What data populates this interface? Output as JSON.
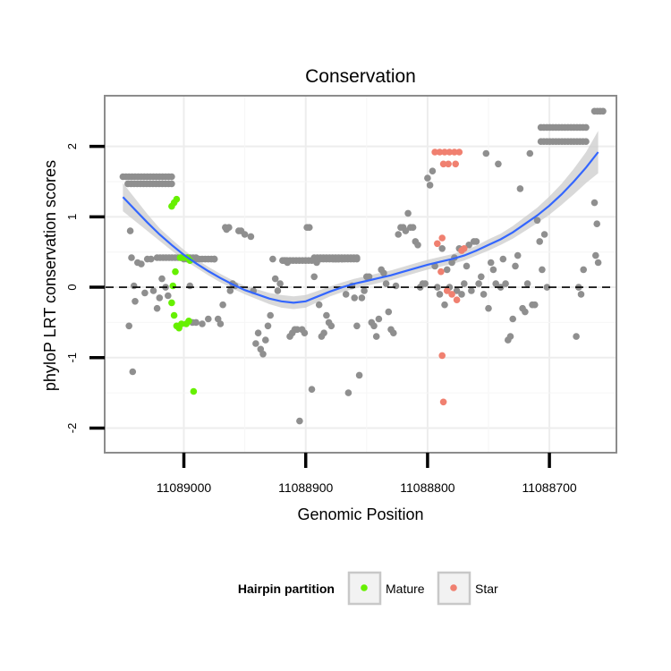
{
  "chart_data": {
    "type": "scatter",
    "title": "Conservation",
    "xlabel": "Genomic Position",
    "ylabel": "phyloP LRT conservation scores",
    "x_reversed": true,
    "xlim": [
      11089065,
      11088645
    ],
    "ylim": [
      -2.35,
      2.72
    ],
    "x_ticks": [
      11089000,
      11088900,
      11088800,
      11088700
    ],
    "x_tick_labels": [
      "11089000",
      "11088900",
      "11088800",
      "11088700"
    ],
    "y_ticks": [
      -2,
      -1,
      0,
      1,
      2
    ],
    "y_tick_labels": [
      "-2",
      "-1",
      "0",
      "1",
      "2"
    ],
    "grid": true,
    "reference_line": {
      "y": 0,
      "style": "dashed"
    },
    "colors": {
      "other": "#8f8f8f",
      "Mature": "#66f000",
      "Star": "#f08070",
      "smooth": "#3366ff",
      "band": "#cccccc"
    },
    "legend": {
      "title": "Hairpin partition",
      "placement": "bottom",
      "entries": [
        {
          "label": "Mature",
          "color": "#66f000"
        },
        {
          "label": "Star",
          "color": "#f08070"
        }
      ]
    },
    "series": [
      {
        "group": "other",
        "points": [
          [
            11089045,
            -0.55
          ],
          [
            11089044,
            0.8
          ],
          [
            11089043,
            0.42
          ],
          [
            11089042,
            -1.2
          ],
          [
            11089041,
            0.02
          ],
          [
            11089040,
            -0.2
          ],
          [
            11089038,
            0.35
          ],
          [
            11089035,
            0.33
          ],
          [
            11089032,
            -0.08
          ],
          [
            11089030,
            0.4
          ],
          [
            11089027,
            0.4
          ],
          [
            11089025,
            -0.05
          ],
          [
            11089022,
            -0.3
          ],
          [
            11089020,
            -0.15
          ],
          [
            11089018,
            0.12
          ],
          [
            11089015,
            0.0
          ],
          [
            11089013,
            -0.12
          ],
          [
            11088995,
            0.02
          ],
          [
            11088993,
            -0.5
          ],
          [
            11088990,
            -0.5
          ],
          [
            11088985,
            -0.52
          ],
          [
            11088980,
            -0.45
          ],
          [
            11088975,
            0.4
          ],
          [
            11088972,
            -0.45
          ],
          [
            11088970,
            -0.52
          ],
          [
            11088968,
            -0.25
          ],
          [
            11088966,
            0.85
          ],
          [
            11088965,
            0.82
          ],
          [
            11088963,
            0.85
          ],
          [
            11088962,
            -0.05
          ],
          [
            11088960,
            0.05
          ],
          [
            11088958,
            0.02
          ],
          [
            11088955,
            0.8
          ],
          [
            11088953,
            0.8
          ],
          [
            11088950,
            0.75
          ],
          [
            11088945,
            0.72
          ],
          [
            11088943,
            -0.05
          ],
          [
            11088941,
            -0.8
          ],
          [
            11088939,
            -0.65
          ],
          [
            11088937,
            -0.88
          ],
          [
            11088935,
            -0.95
          ],
          [
            11088933,
            -0.75
          ],
          [
            11088931,
            -0.55
          ],
          [
            11088929,
            -0.4
          ],
          [
            11088927,
            0.4
          ],
          [
            11088925,
            0.12
          ],
          [
            11088923,
            -0.05
          ],
          [
            11088921,
            0.05
          ],
          [
            11088919,
            0.38
          ],
          [
            11088917,
            0.38
          ],
          [
            11088915,
            0.35
          ],
          [
            11088913,
            -0.7
          ],
          [
            11088911,
            -0.65
          ],
          [
            11088909,
            -0.6
          ],
          [
            11088907,
            -0.6
          ],
          [
            11088905,
            -1.9
          ],
          [
            11088903,
            -0.6
          ],
          [
            11088901,
            -0.65
          ],
          [
            11088899,
            0.85
          ],
          [
            11088897,
            0.85
          ],
          [
            11088895,
            -1.45
          ],
          [
            11088893,
            0.15
          ],
          [
            11088891,
            0.35
          ],
          [
            11088889,
            -0.25
          ],
          [
            11088887,
            -0.7
          ],
          [
            11088885,
            -0.65
          ],
          [
            11088883,
            -0.4
          ],
          [
            11088881,
            -0.5
          ],
          [
            11088879,
            -0.55
          ],
          [
            11088877,
            0.4
          ],
          [
            11088875,
            0.4
          ],
          [
            11088873,
            0.4
          ],
          [
            11088870,
            0.4
          ],
          [
            11088867,
            -0.1
          ],
          [
            11088865,
            -1.5
          ],
          [
            11088862,
            0.02
          ],
          [
            11088860,
            -0.15
          ],
          [
            11088858,
            -0.55
          ],
          [
            11088856,
            -1.25
          ],
          [
            11088854,
            -0.15
          ],
          [
            11088852,
            -0.05
          ],
          [
            11088850,
            0.15
          ],
          [
            11088848,
            0.15
          ],
          [
            11088846,
            -0.5
          ],
          [
            11088844,
            -0.55
          ],
          [
            11088842,
            -0.7
          ],
          [
            11088840,
            -0.45
          ],
          [
            11088838,
            0.25
          ],
          [
            11088836,
            0.2
          ],
          [
            11088834,
            0.05
          ],
          [
            11088832,
            -0.35
          ],
          [
            11088830,
            -0.6
          ],
          [
            11088828,
            -0.65
          ],
          [
            11088826,
            0.02
          ],
          [
            11088824,
            0.75
          ],
          [
            11088822,
            0.85
          ],
          [
            11088820,
            0.85
          ],
          [
            11088818,
            0.8
          ],
          [
            11088816,
            1.05
          ],
          [
            11088814,
            0.85
          ],
          [
            11088812,
            0.85
          ],
          [
            11088810,
            0.65
          ],
          [
            11088808,
            0.6
          ],
          [
            11088806,
            0.0
          ],
          [
            11088804,
            0.05
          ],
          [
            11088802,
            0.05
          ],
          [
            11088800,
            1.55
          ],
          [
            11088798,
            1.45
          ],
          [
            11088796,
            1.65
          ],
          [
            11088794,
            0.3
          ],
          [
            11088792,
            0.0
          ],
          [
            11088790,
            -0.1
          ],
          [
            11088788,
            0.55
          ],
          [
            11088786,
            -0.25
          ],
          [
            11088784,
            0.25
          ],
          [
            11088782,
            0.0
          ],
          [
            11088780,
            0.35
          ],
          [
            11088778,
            0.42
          ],
          [
            11088776,
            -0.05
          ],
          [
            11088774,
            0.55
          ],
          [
            11088772,
            -0.1
          ],
          [
            11088770,
            0.05
          ],
          [
            11088768,
            0.3
          ],
          [
            11088766,
            0.6
          ],
          [
            11088764,
            -0.05
          ],
          [
            11088762,
            0.65
          ],
          [
            11088760,
            0.65
          ],
          [
            11088758,
            0.05
          ],
          [
            11088756,
            0.15
          ],
          [
            11088754,
            -0.1
          ],
          [
            11088752,
            1.9
          ],
          [
            11088750,
            -0.3
          ],
          [
            11088748,
            0.35
          ],
          [
            11088746,
            0.25
          ],
          [
            11088744,
            0.05
          ],
          [
            11088742,
            1.75
          ],
          [
            11088740,
            0.0
          ],
          [
            11088738,
            0.4
          ],
          [
            11088736,
            0.05
          ],
          [
            11088734,
            -0.75
          ],
          [
            11088732,
            -0.7
          ],
          [
            11088730,
            -0.45
          ],
          [
            11088728,
            0.3
          ],
          [
            11088726,
            0.45
          ],
          [
            11088724,
            1.4
          ],
          [
            11088722,
            -0.3
          ],
          [
            11088720,
            -0.35
          ],
          [
            11088718,
            0.05
          ],
          [
            11088716,
            1.9
          ],
          [
            11088714,
            -0.25
          ],
          [
            11088712,
            -0.25
          ],
          [
            11088710,
            0.95
          ],
          [
            11088708,
            0.65
          ],
          [
            11088706,
            0.25
          ],
          [
            11088704,
            0.75
          ],
          [
            11088702,
            0.0
          ],
          [
            11088678,
            -0.7
          ],
          [
            11088676,
            0.0
          ],
          [
            11088674,
            -0.1
          ],
          [
            11088672,
            0.25
          ],
          [
            11088663,
            1.2
          ],
          [
            11088662,
            0.45
          ],
          [
            11088661,
            0.9
          ],
          [
            11088660,
            0.35
          ]
        ]
      },
      {
        "group": "other",
        "runs": [
          [
            11089050,
            11089010,
            1.57
          ],
          [
            11089046,
            11089010,
            1.47
          ],
          [
            11089022,
            11088990,
            0.42
          ],
          [
            11089000,
            11088975,
            0.4
          ],
          [
            11088918,
            11088895,
            0.38
          ],
          [
            11088893,
            11088858,
            0.42
          ],
          [
            11088893,
            11088858,
            0.4
          ],
          [
            11088707,
            11088670,
            2.27
          ],
          [
            11088707,
            11088670,
            2.07
          ],
          [
            11088663,
            11088656,
            2.5
          ]
        ]
      },
      {
        "group": "Mature",
        "name": "Mature",
        "points": [
          [
            11089010,
            1.15
          ],
          [
            11089008,
            1.2
          ],
          [
            11089006,
            1.25
          ],
          [
            11089007,
            0.22
          ],
          [
            11089009,
            0.02
          ],
          [
            11089010,
            -0.22
          ],
          [
            11089008,
            -0.4
          ],
          [
            11089006,
            -0.55
          ],
          [
            11089004,
            -0.58
          ],
          [
            11089002,
            -0.52
          ],
          [
            11088998,
            -0.52
          ],
          [
            11088996,
            -0.48
          ],
          [
            11088992,
            -1.48
          ],
          [
            11089003,
            0.42
          ],
          [
            11089000,
            0.42
          ],
          [
            11088997,
            0.42
          ],
          [
            11088995,
            0.38
          ]
        ]
      },
      {
        "group": "Star",
        "name": "Star",
        "points": [
          [
            11088794,
            1.92
          ],
          [
            11088790,
            1.92
          ],
          [
            11088786,
            1.92
          ],
          [
            11088782,
            1.92
          ],
          [
            11088778,
            1.92
          ],
          [
            11088774,
            1.92
          ],
          [
            11088787,
            1.75
          ],
          [
            11088783,
            1.75
          ],
          [
            11088777,
            1.75
          ],
          [
            11088792,
            0.62
          ],
          [
            11088788,
            0.7
          ],
          [
            11088784,
            -0.05
          ],
          [
            11088780,
            -0.1
          ],
          [
            11088776,
            -0.18
          ],
          [
            11088772,
            0.52
          ],
          [
            11088770,
            0.55
          ],
          [
            11088789,
            0.22
          ],
          [
            11088788,
            -0.97
          ],
          [
            11088787,
            -1.63
          ]
        ]
      }
    ],
    "smooth_fit": {
      "x": [
        11089050,
        11089040,
        11089030,
        11089020,
        11089010,
        11089000,
        11088990,
        11088980,
        11088970,
        11088960,
        11088950,
        11088940,
        11088930,
        11088920,
        11088910,
        11088900,
        11088890,
        11088880,
        11088870,
        11088860,
        11088850,
        11088840,
        11088830,
        11088820,
        11088810,
        11088800,
        11088790,
        11088780,
        11088770,
        11088760,
        11088750,
        11088740,
        11088730,
        11088720,
        11088710,
        11088700,
        11088690,
        11088680,
        11088670,
        11088660
      ],
      "y": [
        1.28,
        1.1,
        0.92,
        0.75,
        0.6,
        0.46,
        0.34,
        0.23,
        0.13,
        0.04,
        -0.04,
        -0.1,
        -0.16,
        -0.2,
        -0.22,
        -0.2,
        -0.13,
        -0.06,
        0.0,
        0.05,
        0.09,
        0.13,
        0.17,
        0.22,
        0.27,
        0.32,
        0.36,
        0.4,
        0.45,
        0.52,
        0.6,
        0.68,
        0.78,
        0.9,
        1.02,
        1.16,
        1.32,
        1.5,
        1.7,
        1.92
      ],
      "lower": [
        1.08,
        0.94,
        0.8,
        0.66,
        0.52,
        0.39,
        0.28,
        0.17,
        0.07,
        -0.02,
        -0.1,
        -0.17,
        -0.24,
        -0.29,
        -0.31,
        -0.29,
        -0.21,
        -0.13,
        -0.07,
        -0.02,
        0.02,
        0.06,
        0.1,
        0.15,
        0.2,
        0.25,
        0.29,
        0.33,
        0.38,
        0.45,
        0.52,
        0.6,
        0.69,
        0.8,
        0.91,
        1.03,
        1.17,
        1.32,
        1.48,
        1.62
      ],
      "upper": [
        1.48,
        1.26,
        1.04,
        0.84,
        0.68,
        0.53,
        0.4,
        0.29,
        0.19,
        0.1,
        0.02,
        -0.03,
        -0.08,
        -0.11,
        -0.13,
        -0.11,
        -0.05,
        0.01,
        0.07,
        0.12,
        0.16,
        0.2,
        0.24,
        0.29,
        0.34,
        0.39,
        0.43,
        0.47,
        0.52,
        0.59,
        0.68,
        0.76,
        0.87,
        1.0,
        1.13,
        1.29,
        1.47,
        1.68,
        1.92,
        2.22
      ]
    }
  }
}
